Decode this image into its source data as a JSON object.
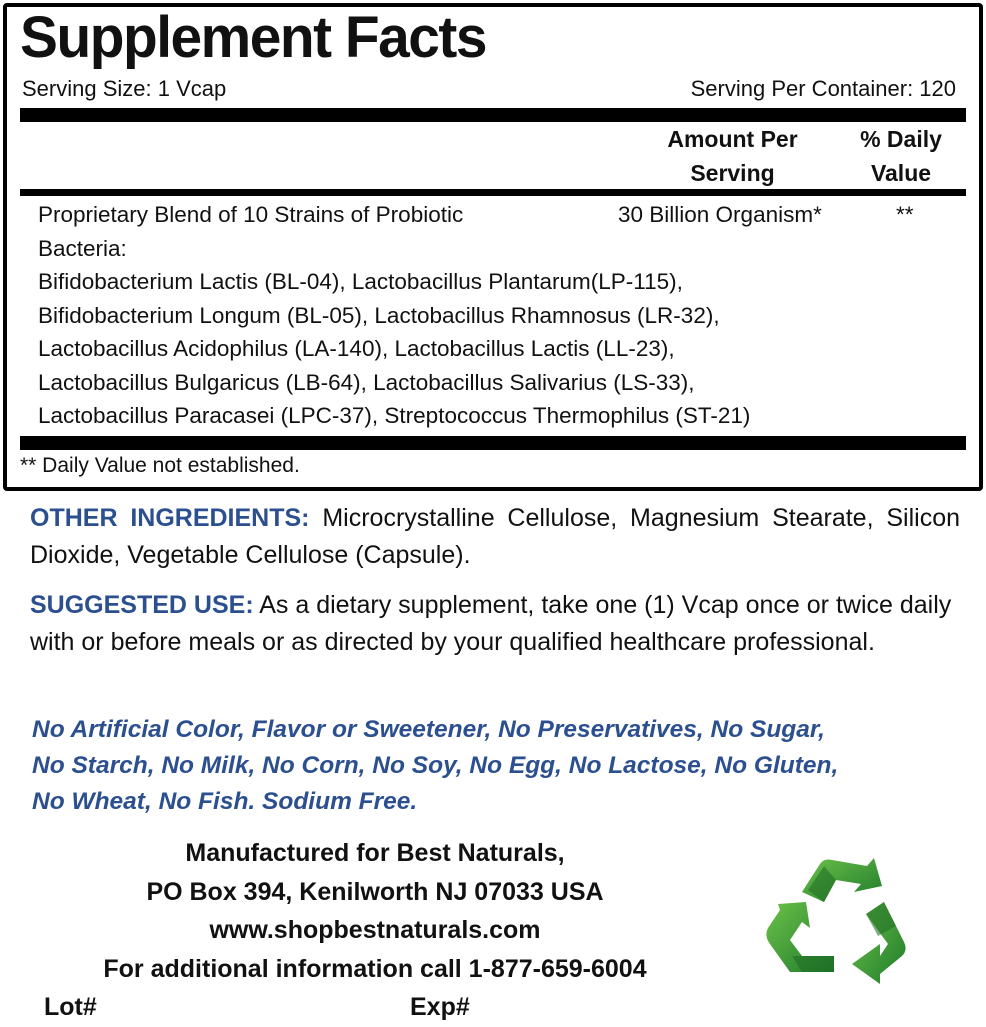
{
  "facts": {
    "title": "Supplement Facts",
    "serving_size": "Serving Size: 1 Vcap",
    "servings_per_container": "Serving Per Container: 120",
    "header_amount": [
      "Amount Per",
      "Serving"
    ],
    "header_dv": [
      "% Daily",
      "Value"
    ],
    "blend_lines": [
      "Proprietary Blend of 10 Strains of Probiotic",
      "Bacteria:",
      "Bifidobacterium Lactis (BL-04), Lactobacillus Plantarum(LP-115),",
      "Bifidobacterium Longum (BL-05), Lactobacillus Rhamnosus (LR-32),",
      "Lactobacillus Acidophilus (LA-140), Lactobacillus Lactis (LL-23),",
      "Lactobacillus Bulgaricus (LB-64), Lactobacillus Salivarius (LS-33),",
      "Lactobacillus Paracasei (LPC-37), Streptococcus Thermophilus (ST-21)"
    ],
    "blend_amount": "30 Billion Organism*",
    "blend_dv": "**",
    "footnote": "** Daily Value not established."
  },
  "other_ingredients": {
    "label": "OTHER INGREDIENTS:",
    "text": "Microcrystalline Cellulose, Magnesium Stearate, Silicon Dioxide, Vegetable Cellulose (Capsule)."
  },
  "suggested_use": {
    "label": "SUGGESTED USE:",
    "text": "As a dietary supplement, take one (1) Vcap once or twice daily with or before meals or as directed by your qualified healthcare professional."
  },
  "free_from_lines": [
    "No Artificial Color, Flavor or Sweetener, No Preservatives, No Sugar,",
    "No Starch, No Milk, No Corn, No Soy, No Egg, No Lactose, No Gluten,",
    "No Wheat, No Fish. Sodium Free."
  ],
  "manufacturer": {
    "lines": [
      "Manufactured for Best Naturals,",
      "PO Box 394, Kenilworth NJ 07033 USA",
      "www.shopbestnaturals.com",
      "For additional information call 1-877-659-6004"
    ],
    "lot": "Lot#",
    "exp": "Exp#"
  },
  "colors": {
    "accent_blue": "#2b4f8f",
    "recycle_green": "#3fa535"
  },
  "icons": {
    "recycle": "recycle-icon"
  }
}
